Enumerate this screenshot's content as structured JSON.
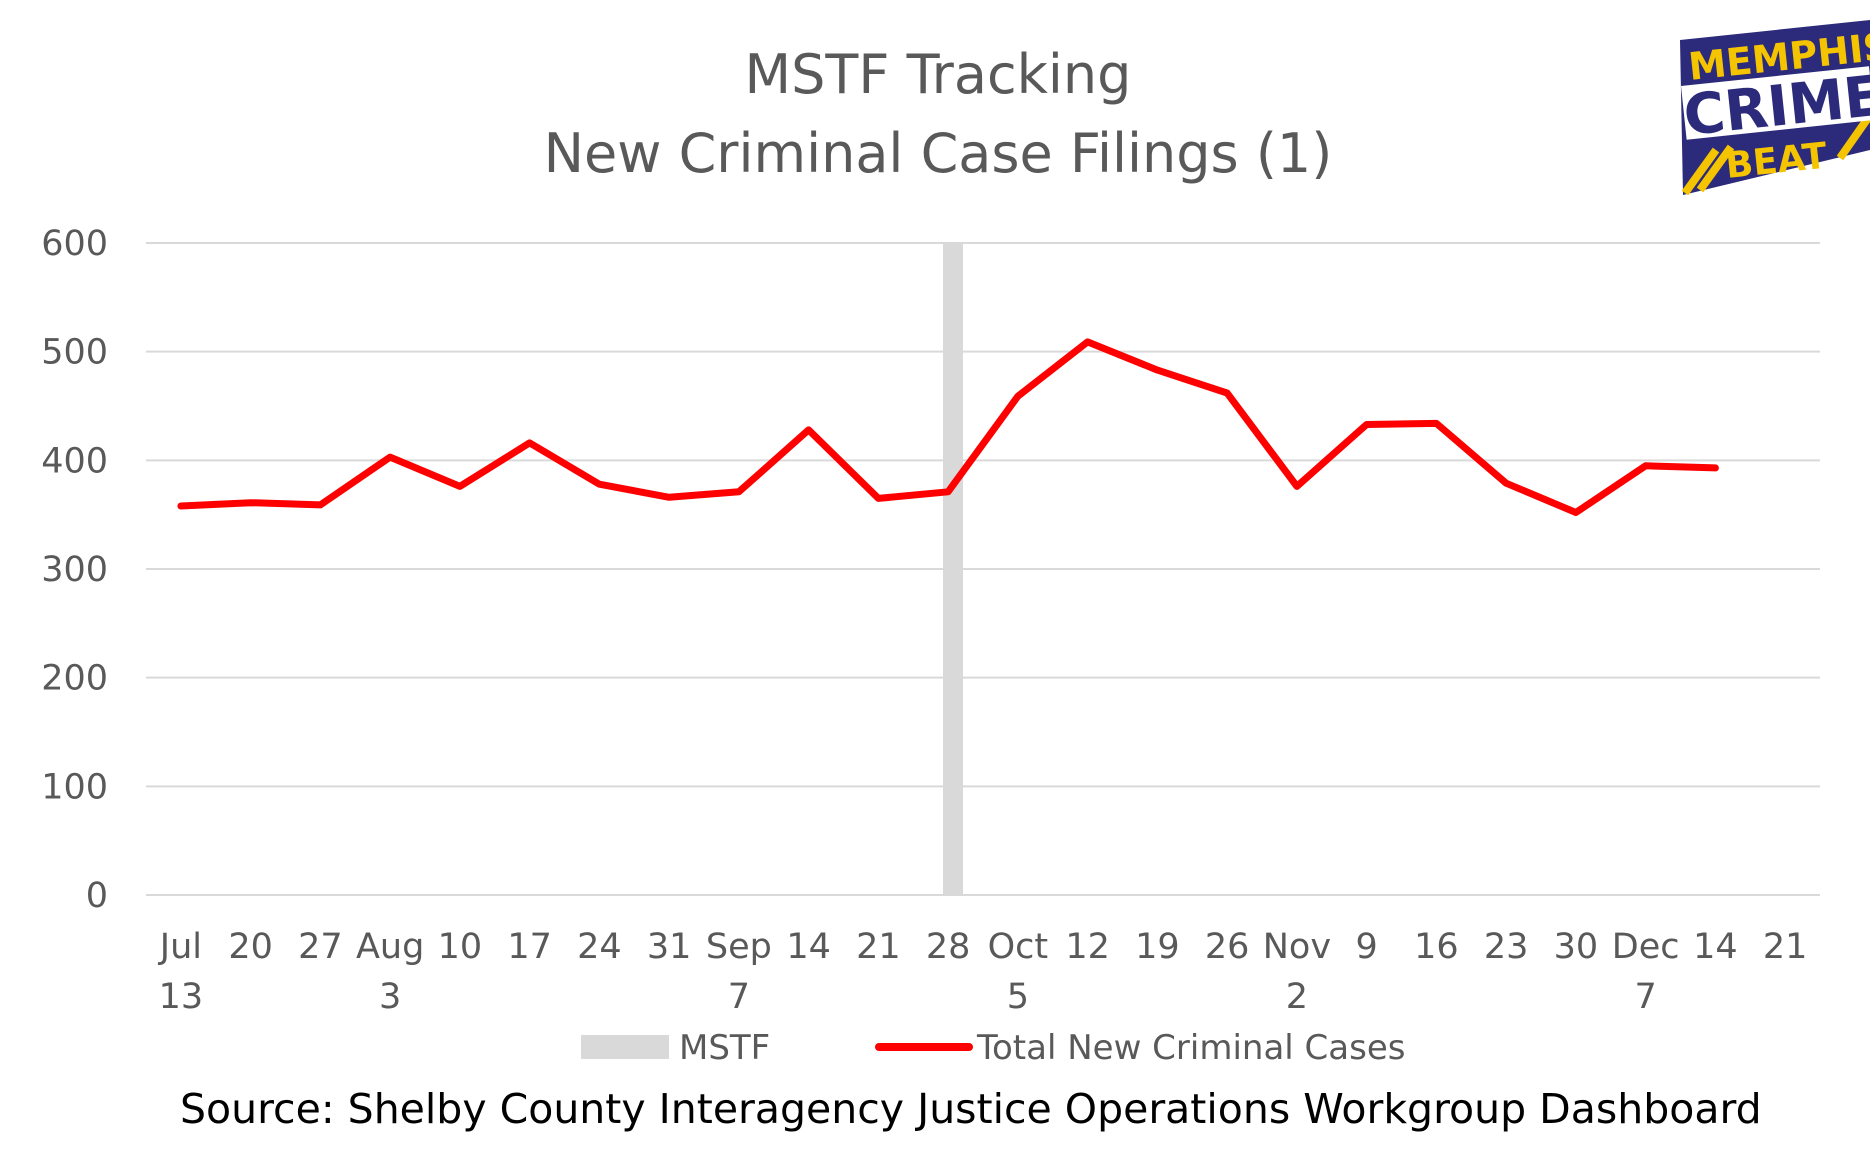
{
  "chart_data": {
    "type": "line",
    "title_lines": [
      "MSTF Tracking",
      "New Criminal Case Filings (1)"
    ],
    "ylim": [
      0,
      600
    ],
    "yticks": [
      0,
      100,
      200,
      300,
      400,
      500,
      600
    ],
    "grid": true,
    "categories": [
      [
        "Jul",
        "13"
      ],
      [
        "20",
        ""
      ],
      [
        "27",
        ""
      ],
      [
        "Aug",
        "3"
      ],
      [
        "10",
        ""
      ],
      [
        "17",
        ""
      ],
      [
        "24",
        ""
      ],
      [
        "31",
        ""
      ],
      [
        "Sep",
        "7"
      ],
      [
        "14",
        ""
      ],
      [
        "21",
        ""
      ],
      [
        "28",
        ""
      ],
      [
        "Oct",
        "5"
      ],
      [
        "12",
        ""
      ],
      [
        "19",
        ""
      ],
      [
        "26",
        ""
      ],
      [
        "Nov",
        "2"
      ],
      [
        "9",
        ""
      ],
      [
        "16",
        ""
      ],
      [
        "23",
        ""
      ],
      [
        "30",
        ""
      ],
      [
        "Dec",
        "7"
      ],
      [
        "14",
        ""
      ],
      [
        "21",
        ""
      ]
    ],
    "series": [
      {
        "name": "Total New Criminal Cases",
        "color": "#ff0000",
        "values": [
          358,
          361,
          359,
          403,
          376,
          416,
          378,
          366,
          371,
          428,
          365,
          371,
          459,
          509,
          483,
          462,
          376,
          433,
          434,
          379,
          352,
          395,
          393,
          null
        ]
      }
    ],
    "markers": [
      {
        "name": "MSTF",
        "color": "#d9d9d9",
        "position": "between 28 and Oct 5"
      }
    ],
    "legend": {
      "placement": "bottom",
      "entries": [
        "MSTF",
        "Total New Criminal Cases"
      ]
    },
    "source": "Source:  Shelby County Interagency Justice Operations Workgroup Dashboard"
  },
  "logo": {
    "line1": "MEMPHIS",
    "line2": "CRIME",
    "line3": "BEAT",
    "bg": "#2c2a7a",
    "accent": "#f5c400"
  }
}
